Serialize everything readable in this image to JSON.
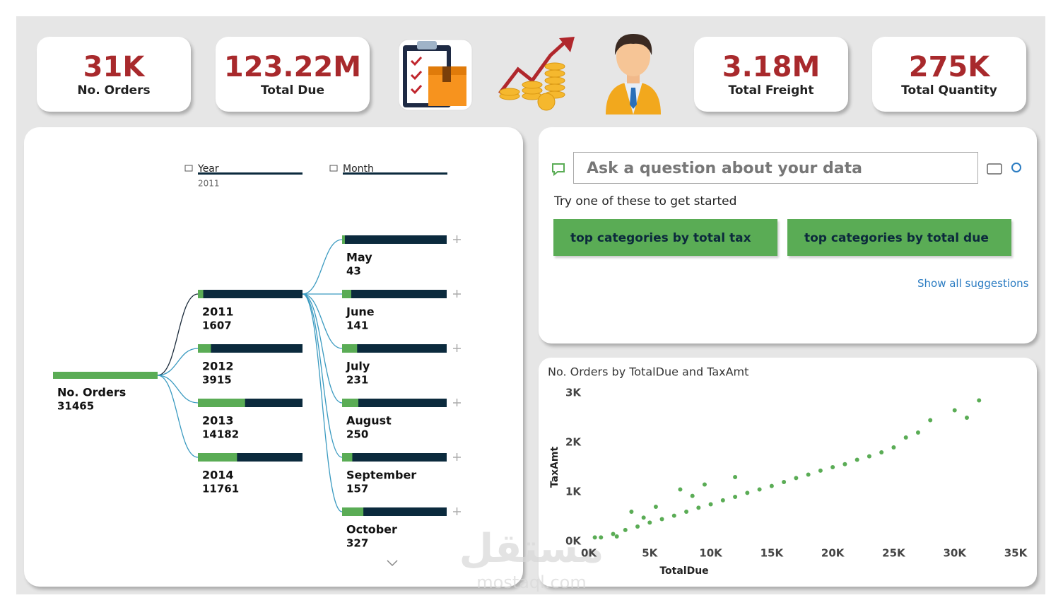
{
  "kpis": [
    {
      "value": "31K",
      "label": "No. Orders"
    },
    {
      "value": "123.22M",
      "label": "Total Due"
    },
    {
      "value": "3.18M",
      "label": "Total Freight"
    },
    {
      "value": "275K",
      "label": "Total Quantity"
    }
  ],
  "decomposition_tree": {
    "headers": [
      {
        "label": "Year",
        "filter": "2011"
      },
      {
        "label": "Month"
      }
    ],
    "root": {
      "label": "No. Orders",
      "value": 31465
    },
    "years": [
      {
        "label": "2011",
        "value": 1607
      },
      {
        "label": "2012",
        "value": 3915
      },
      {
        "label": "2013",
        "value": 14182
      },
      {
        "label": "2014",
        "value": 11761
      }
    ],
    "months": [
      {
        "label": "May",
        "value": 43
      },
      {
        "label": "June",
        "value": 141
      },
      {
        "label": "July",
        "value": 231
      },
      {
        "label": "August",
        "value": 250
      },
      {
        "label": "September",
        "value": 157
      },
      {
        "label": "October",
        "value": 327
      }
    ]
  },
  "qa": {
    "placeholder": "Ask a question about your data",
    "prompt": "Try one of these to get started",
    "suggestions": [
      "top categories by total tax",
      "top categories by total due"
    ],
    "show_all": "Show all suggestions"
  },
  "watermark": {
    "arabic": "مستقل",
    "latin": "mostaql.com"
  },
  "chart_data": {
    "type": "scatter",
    "title": "No. Orders by TotalDue and TaxAmt",
    "x_label": "TotalDue",
    "y_label": "TaxAmt",
    "color": "#5aac55",
    "x": [
      500,
      2300,
      4000,
      1000,
      2000,
      3000,
      3500,
      4500,
      5000,
      5500,
      6000,
      7000,
      7500,
      8000,
      8500,
      9000,
      9500,
      10000,
      11000,
      12000,
      12000,
      13000,
      14000,
      15000,
      16000,
      17000,
      18000,
      19000,
      20000,
      21000,
      22000,
      23000,
      24000,
      25000,
      26000,
      27000,
      28000,
      30000,
      31000,
      32000
    ],
    "y": [
      80,
      100,
      300,
      80,
      150,
      230,
      600,
      480,
      380,
      700,
      450,
      520,
      1050,
      600,
      920,
      680,
      1150,
      750,
      830,
      900,
      1300,
      980,
      1050,
      1120,
      1200,
      1280,
      1350,
      1430,
      1500,
      1560,
      1650,
      1720,
      1800,
      1900,
      2100,
      2200,
      2450,
      2650,
      2500,
      2850
    ],
    "xlim": [
      0,
      35000
    ],
    "ylim": [
      0,
      3000
    ],
    "xticks": [
      {
        "value": 0,
        "label": "0K"
      },
      {
        "value": 5000,
        "label": "5K"
      },
      {
        "value": 10000,
        "label": "10K"
      },
      {
        "value": 15000,
        "label": "15K"
      },
      {
        "value": 20000,
        "label": "20K"
      },
      {
        "value": 25000,
        "label": "25K"
      },
      {
        "value": 30000,
        "label": "30K"
      },
      {
        "value": 35000,
        "label": "35K"
      }
    ],
    "yticks": [
      {
        "value": 0,
        "label": "0K"
      },
      {
        "value": 1000,
        "label": "1K"
      },
      {
        "value": 2000,
        "label": "2K"
      },
      {
        "value": 3000,
        "label": "3K"
      }
    ]
  }
}
